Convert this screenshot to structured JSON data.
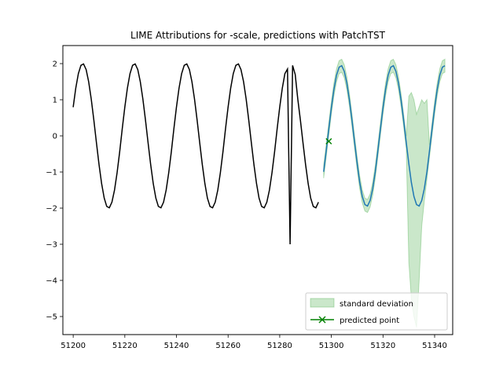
{
  "chart_data": {
    "type": "line",
    "title": "LIME Attributions for -scale, predictions with PatchTST",
    "xlabel": "",
    "ylabel": "",
    "xlim": [
      51196,
      51347
    ],
    "ylim": [
      -5.5,
      2.5
    ],
    "x_ticks": [
      51200,
      51220,
      51240,
      51260,
      51280,
      51300,
      51320,
      51340
    ],
    "y_ticks": [
      2,
      1,
      0,
      -1,
      -2,
      -3,
      -4,
      -5
    ],
    "grid": false,
    "legend_position": "lower-right",
    "colors": {
      "history": "#000000",
      "prediction": "#1f77b4",
      "band": "#2ca02c",
      "point": "#008000"
    },
    "series": [
      {
        "role": "history",
        "x_start": 51200,
        "x_end": 51295,
        "period": 20,
        "amplitude": 2,
        "phase_offset": 51203.7,
        "anomaly": {
          "x": [
            51283,
            51284,
            51285,
            51286
          ],
          "y": [
            1.85,
            -3.0,
            1.95,
            1.7
          ]
        }
      },
      {
        "role": "prediction",
        "x_start": 51297,
        "x_end": 51344,
        "period": 20,
        "amplitude": 1.95,
        "phase_offset": 51303.7
      }
    ],
    "band": {
      "name": "standard deviation",
      "x_start": 51297,
      "x_end": 51344,
      "width": 0.18,
      "wide_region": {
        "x": [
          51330,
          51331,
          51332,
          51333,
          51334,
          51335,
          51336,
          51337
        ],
        "upper": [
          1.1,
          1.2,
          1.0,
          0.6,
          0.8,
          1.0,
          0.9,
          1.0
        ],
        "lower": [
          -3.5,
          -4.5,
          -5.0,
          -5.3,
          -4.0,
          -2.5,
          -1.8,
          -1.2
        ]
      }
    },
    "predicted_point": {
      "name": "predicted point",
      "x": 51299,
      "y": -0.15
    }
  }
}
